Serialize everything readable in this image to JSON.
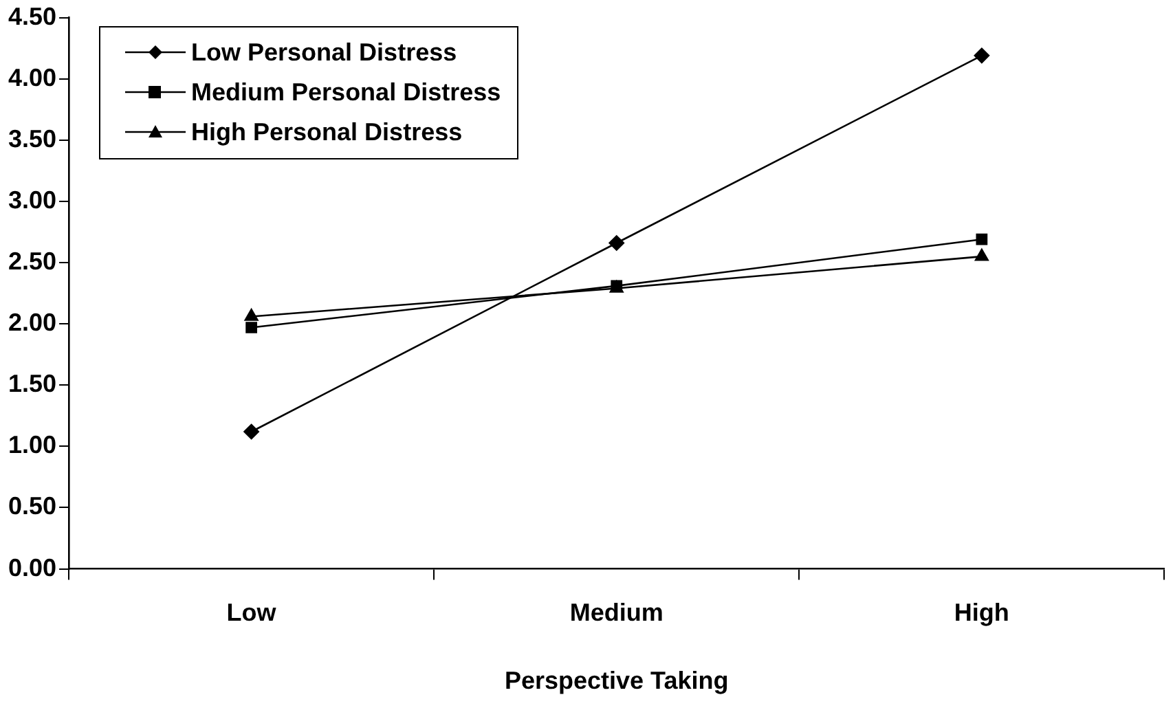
{
  "chart_data": {
    "type": "line",
    "xlabel": "Perspective Taking",
    "categories": [
      "Low",
      "Medium",
      "High"
    ],
    "series": [
      {
        "name": "Low Personal Distress",
        "color": "#000000",
        "marker": "diamond",
        "values": [
          1.12,
          2.66,
          4.19
        ]
      },
      {
        "name": "Medium Personal Distress",
        "color": "#000000",
        "marker": "square",
        "values": [
          1.97,
          2.31,
          2.69
        ]
      },
      {
        "name": "High Personal Distress",
        "color": "#000000",
        "marker": "triangle",
        "values": [
          2.06,
          2.29,
          2.55
        ]
      }
    ],
    "ylim": [
      0,
      4.5
    ],
    "yticks": [
      {
        "value": 0,
        "label": "0.00"
      },
      {
        "value": 0.5,
        "label": "0.50"
      },
      {
        "value": 1,
        "label": "1.00"
      },
      {
        "value": 1.5,
        "label": "1.50"
      },
      {
        "value": 2,
        "label": "2.00"
      },
      {
        "value": 2.5,
        "label": "2.50"
      },
      {
        "value": 3,
        "label": "3.00"
      },
      {
        "value": 3.5,
        "label": "3.50"
      },
      {
        "value": 4,
        "label": "4.00"
      },
      {
        "value": 4.5,
        "label": "4.50"
      }
    ],
    "grid": false,
    "legend": "top left",
    "line_style": "solid"
  }
}
